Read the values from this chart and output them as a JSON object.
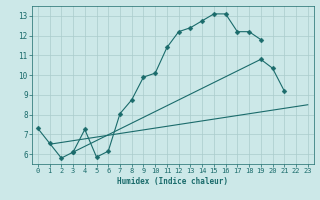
{
  "xlabel": "Humidex (Indice chaleur)",
  "bg_color": "#cce8e8",
  "grid_color": "#aacccc",
  "line_color": "#1a6b6b",
  "xlim": [
    -0.5,
    23.5
  ],
  "ylim": [
    5.5,
    13.5
  ],
  "xticks": [
    0,
    1,
    2,
    3,
    4,
    5,
    6,
    7,
    8,
    9,
    10,
    11,
    12,
    13,
    14,
    15,
    16,
    17,
    18,
    19,
    20,
    21,
    22,
    23
  ],
  "yticks": [
    6,
    7,
    8,
    9,
    10,
    11,
    12,
    13
  ],
  "line1_x": [
    0,
    1,
    2,
    3,
    4,
    5,
    6,
    7,
    8,
    9,
    10,
    11,
    12,
    13,
    14,
    15,
    16,
    17,
    18,
    19
  ],
  "line1_y": [
    7.3,
    6.55,
    5.8,
    6.1,
    7.25,
    5.85,
    6.15,
    8.05,
    8.75,
    9.9,
    10.1,
    11.4,
    12.2,
    12.4,
    12.75,
    13.1,
    13.1,
    12.2,
    12.2,
    11.8
  ],
  "line2_x": [
    3,
    19,
    20,
    21
  ],
  "line2_y": [
    6.1,
    10.8,
    10.35,
    9.2
  ],
  "line3_x": [
    1,
    23
  ],
  "line3_y": [
    6.5,
    8.5
  ]
}
